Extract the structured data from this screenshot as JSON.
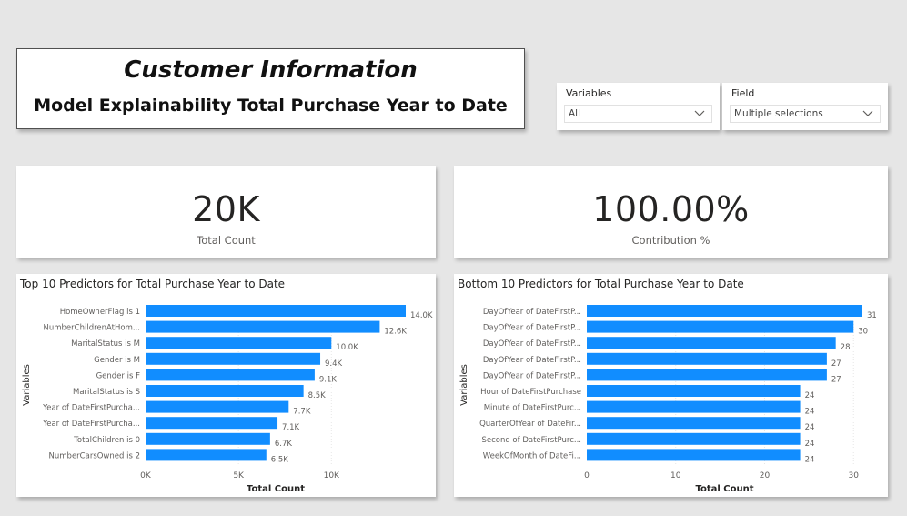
{
  "header": {
    "title": "Customer Information",
    "subtitle": "Model Explainability Total Purchase Year to Date"
  },
  "slicers": [
    {
      "label": "Variables",
      "value": "All"
    },
    {
      "label": "Field",
      "value": "Multiple selections"
    }
  ],
  "kpis": [
    {
      "value": "20K",
      "label": "Total Count"
    },
    {
      "value": "100.00%",
      "label": "Contribution %"
    }
  ],
  "colors": {
    "bar": "#118dff",
    "background": "#e6e6e6",
    "card": "#ffffff"
  },
  "chart_data": [
    {
      "type": "bar",
      "orientation": "horizontal",
      "title": "Top 10 Predictors for Total Purchase Year to Date",
      "xlabel": "Total Count",
      "ylabel": "Variables",
      "xlim": [
        0,
        14000
      ],
      "xticks": [
        0,
        5000,
        10000
      ],
      "xtick_labels": [
        "0K",
        "5K",
        "10K"
      ],
      "grid": true,
      "categories": [
        "HomeOwnerFlag is 1",
        "NumberChildrenAtHom...",
        "MaritalStatus is M",
        "Gender is M",
        "Gender is F",
        "MaritalStatus is S",
        "Year of DateFirstPurcha...",
        "Year of DateFirstPurcha...",
        "TotalChildren is 0",
        "NumberCarsOwned is 2"
      ],
      "values": [
        14000,
        12600,
        10000,
        9400,
        9100,
        8500,
        7700,
        7100,
        6700,
        6500
      ],
      "data_labels": [
        "14.0K",
        "12.6K",
        "10.0K",
        "9.4K",
        "9.1K",
        "8.5K",
        "7.7K",
        "7.1K",
        "6.7K",
        "6.5K"
      ]
    },
    {
      "type": "bar",
      "orientation": "horizontal",
      "title": "Bottom 10 Predictors for Total Purchase Year to Date",
      "xlabel": "Total Count",
      "ylabel": "Variables",
      "xlim": [
        0,
        31
      ],
      "xticks": [
        0,
        10,
        20,
        30
      ],
      "xtick_labels": [
        "0",
        "10",
        "20",
        "30"
      ],
      "grid": true,
      "categories": [
        "DayOfYear of DateFirstP...",
        "DayOfYear of DateFirstP...",
        "DayOfYear of DateFirstP...",
        "DayOfYear of DateFirstP...",
        "DayOfYear of DateFirstP...",
        "Hour of DateFirstPurchase",
        "Minute of DateFirstPurc...",
        "QuarterOfYear of DateFir...",
        "Second of DateFirstPurc...",
        "WeekOfMonth of DateFi..."
      ],
      "values": [
        31,
        30,
        28,
        27,
        27,
        24,
        24,
        24,
        24,
        24
      ],
      "data_labels": [
        "31",
        "30",
        "28",
        "27",
        "27",
        "24",
        "24",
        "24",
        "24",
        "24"
      ]
    }
  ]
}
